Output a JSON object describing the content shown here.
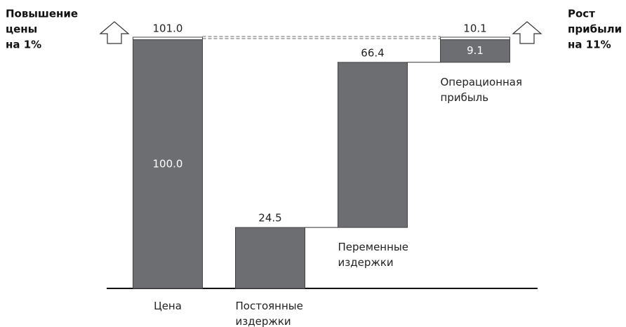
{
  "chart_data": {
    "type": "waterfall",
    "categories": [
      "Цена",
      "Постоянные издержки",
      "Переменные издержки",
      "Операционная прибыль"
    ],
    "series": [
      {
        "color": "#6d6e71",
        "values": [
          100,
          24.5,
          66.4,
          9.1
        ],
        "value_labels": [
          "100.0",
          "24.5",
          "66.4",
          "9.1"
        ]
      },
      {
        "color": "#ffffff",
        "values": [
          101,
          null,
          null,
          10.1
        ],
        "value_labels": [
          "101.0",
          null,
          null,
          "10.1"
        ]
      }
    ],
    "ylim": [
      0,
      101
    ],
    "annotations": [
      {
        "lines": [
          "Повышение",
          "цены",
          "на 1%"
        ]
      },
      {
        "lines": [
          "Рост",
          "прибыли",
          "на 11%"
        ]
      }
    ]
  }
}
